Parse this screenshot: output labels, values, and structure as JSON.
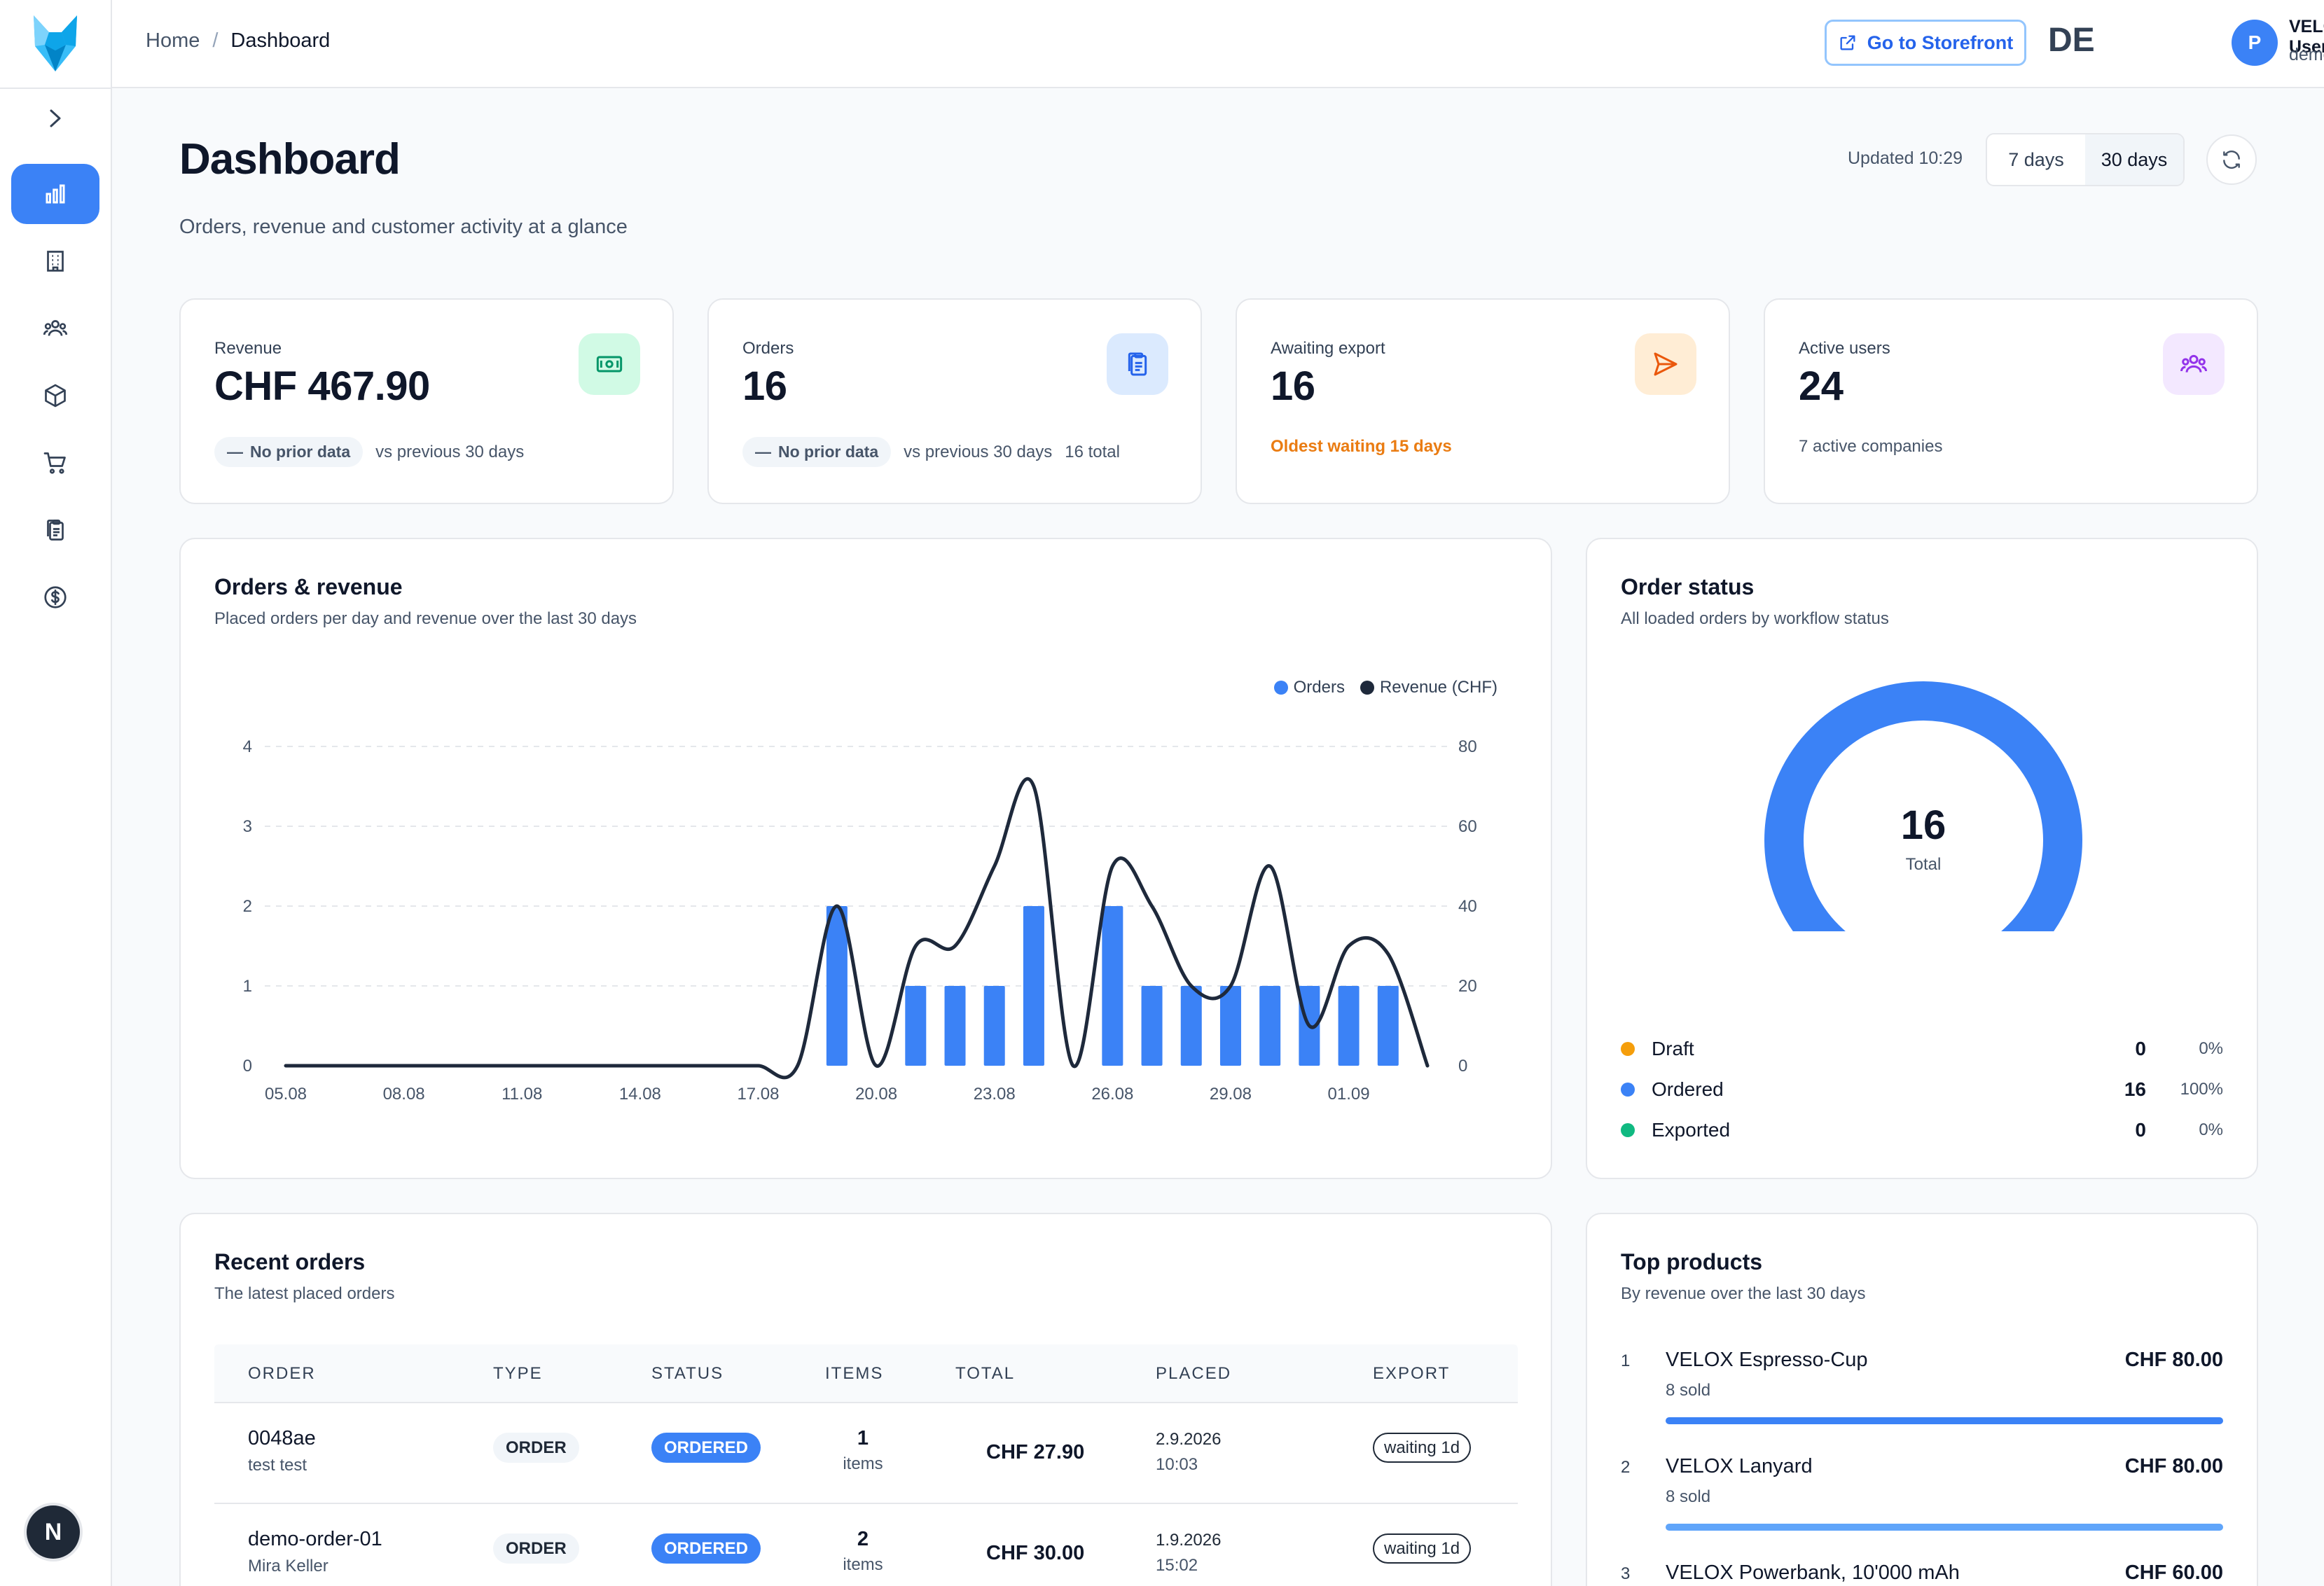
{
  "header": {
    "breadcrumb": {
      "home": "Home",
      "separator": "/",
      "current": "Dashboard"
    },
    "storefront_label": "Go to Storefront",
    "language": "DE",
    "user": {
      "initial": "P",
      "name": "VELOX User",
      "email": "demo@sly.ch"
    }
  },
  "sidebar": {
    "items": [
      {
        "icon": "bar-chart-icon",
        "active": true
      },
      {
        "icon": "building-icon",
        "active": false
      },
      {
        "icon": "users-icon",
        "active": false
      },
      {
        "icon": "box-icon",
        "active": false
      },
      {
        "icon": "cart-icon",
        "active": false
      },
      {
        "icon": "clipboard-icon",
        "active": false
      },
      {
        "icon": "dollar-icon",
        "active": false
      }
    ],
    "footer_initial": "N"
  },
  "page": {
    "title": "Dashboard",
    "subtitle": "Orders, revenue and customer activity at a glance",
    "updated": "Updated 10:29",
    "ranges": [
      "7 days",
      "30 days"
    ],
    "selected_range": "30 days"
  },
  "kpis": {
    "revenue": {
      "label": "Revenue",
      "value": "CHF 467.90",
      "chip": "No prior data",
      "note": "vs previous 30 days",
      "icon": "cash-icon",
      "color": "#10b981"
    },
    "orders": {
      "label": "Orders",
      "value": "16",
      "chip": "No prior data",
      "note": "vs previous 30 days",
      "extra": "16 total",
      "icon": "clipboard-icon",
      "color": "#3b82f6"
    },
    "awaiting": {
      "label": "Awaiting export",
      "value": "16",
      "note": "Oldest waiting 15 days",
      "icon": "send-icon",
      "color": "#f59e0b"
    },
    "users": {
      "label": "Active users",
      "value": "24",
      "note": "7 active companies",
      "icon": "users-icon",
      "color": "#a855f7"
    }
  },
  "orders_chart": {
    "title": "Orders & revenue",
    "subtitle": "Placed orders per day and revenue over the last 30 days",
    "legend": {
      "orders": "Orders",
      "revenue": "Revenue (CHF)"
    }
  },
  "chart_data": {
    "type": "bar",
    "categories": [
      "05.08",
      "06.08",
      "07.08",
      "08.08",
      "09.08",
      "10.08",
      "11.08",
      "12.08",
      "13.08",
      "14.08",
      "15.08",
      "16.08",
      "17.08",
      "18.08",
      "19.08",
      "20.08",
      "21.08",
      "22.08",
      "23.08",
      "24.08",
      "25.08",
      "26.08",
      "27.08",
      "28.08",
      "29.08",
      "30.08",
      "31.08",
      "01.09",
      "02.09",
      "03.09"
    ],
    "tick_labels": [
      "05.08",
      "08.08",
      "11.08",
      "14.08",
      "17.08",
      "20.08",
      "23.08",
      "26.08",
      "29.08",
      "01.09"
    ],
    "series": [
      {
        "name": "Orders",
        "type": "bar",
        "axis": "left",
        "color": "#3b82f6",
        "values": [
          0,
          0,
          0,
          0,
          0,
          0,
          0,
          0,
          0,
          0,
          0,
          0,
          0,
          0,
          2,
          0,
          1,
          1,
          1,
          2,
          0,
          2,
          1,
          1,
          1,
          1,
          1,
          1,
          1,
          0
        ]
      },
      {
        "name": "Revenue (CHF)",
        "type": "line",
        "axis": "right",
        "color": "#1e293b",
        "values": [
          0,
          0,
          0,
          0,
          0,
          0,
          0,
          0,
          0,
          0,
          0,
          0,
          0,
          0,
          40,
          0,
          30,
          30,
          50,
          70,
          0,
          50,
          40,
          20,
          20,
          50,
          10,
          30,
          28,
          0
        ]
      }
    ],
    "y_left": {
      "min": 0,
      "max": 4,
      "ticks": [
        0,
        1,
        2,
        3,
        4
      ]
    },
    "y_right": {
      "min": 0,
      "max": 80,
      "ticks": [
        0,
        20,
        40,
        60,
        80
      ]
    },
    "grid": true,
    "legend_position": "top-right"
  },
  "order_status": {
    "title": "Order status",
    "subtitle": "All loaded orders by workflow status",
    "total": "16",
    "total_label": "Total",
    "rows": [
      {
        "name": "Draft",
        "count": "0",
        "pct": "0%",
        "color": "#f59e0b"
      },
      {
        "name": "Ordered",
        "count": "16",
        "pct": "100%",
        "color": "#3b82f6"
      },
      {
        "name": "Exported",
        "count": "0",
        "pct": "0%",
        "color": "#10b981"
      }
    ]
  },
  "recent_orders": {
    "title": "Recent orders",
    "subtitle": "The latest placed orders",
    "columns": [
      "ORDER",
      "TYPE",
      "STATUS",
      "ITEMS",
      "TOTAL",
      "PLACED",
      "EXPORT"
    ],
    "rows": [
      {
        "id": "0048ae",
        "customer": "test test",
        "type": "ORDER",
        "status": "ORDERED",
        "items": "1",
        "items_label": "items",
        "total": "CHF 27.90",
        "date": "2.9.2026",
        "time": "10:03",
        "export": "waiting 1d"
      },
      {
        "id": "demo-order-01",
        "customer": "Mira Keller",
        "type": "ORDER",
        "status": "ORDERED",
        "items": "2",
        "items_label": "items",
        "total": "CHF 30.00",
        "date": "1.9.2026",
        "time": "15:02",
        "export": "waiting 1d"
      }
    ]
  },
  "top_products": {
    "title": "Top products",
    "subtitle": "By revenue over the last 30 days",
    "items": [
      {
        "rank": "1",
        "name": "VELOX Espresso-Cup",
        "value": "CHF 80.00",
        "sold": "8 sold",
        "share": 1.0,
        "color": "#3b82f6"
      },
      {
        "rank": "2",
        "name": "VELOX Lanyard",
        "value": "CHF 80.00",
        "sold": "8 sold",
        "share": 1.0,
        "color": "#60a5fa"
      },
      {
        "rank": "3",
        "name": "VELOX Powerbank, 10'000 mAh",
        "value": "CHF 60.00",
        "sold": "",
        "share": 0.75,
        "color": "#93c5fd"
      }
    ]
  }
}
